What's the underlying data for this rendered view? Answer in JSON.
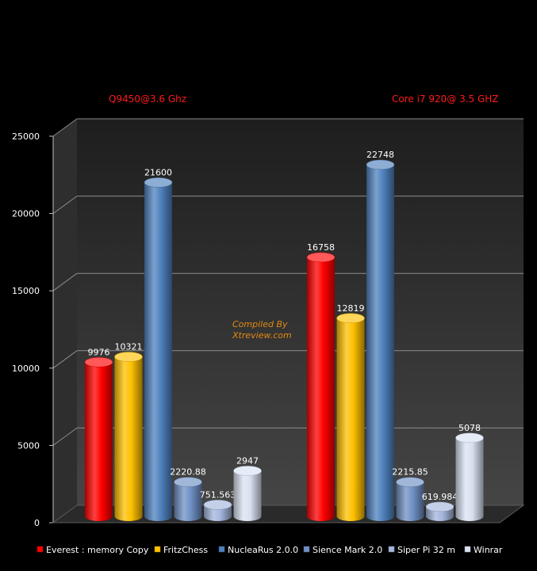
{
  "chart_data": {
    "type": "bar",
    "categories": [
      "Q9450@3.6 Ghz",
      "Core i7 920@ 3.5 GHZ"
    ],
    "series": [
      {
        "name": "Everest : memory Copy",
        "values": [
          9976,
          16758
        ],
        "labels": [
          "9976",
          "16758"
        ],
        "color": "#ff0000"
      },
      {
        "name": "FritzChess",
        "values": [
          10321,
          12819
        ],
        "labels": [
          "10321",
          "12819"
        ],
        "color": "#ffc000"
      },
      {
        "name": "NucleaRus 2.0.0",
        "values": [
          21600,
          22748
        ],
        "labels": [
          "21600",
          "22748"
        ],
        "color": "#4f81bd"
      },
      {
        "name": "Sience Mark 2.0",
        "values": [
          2220.88,
          2215.85
        ],
        "labels": [
          "2220.88",
          "2215.85"
        ],
        "color": "#6f90c4"
      },
      {
        "name": "Siper Pi 32 m",
        "values": [
          751.563,
          619.984
        ],
        "labels": [
          "751.563",
          "619.984"
        ],
        "color": "#a3b6dc"
      },
      {
        "name": "Winrar",
        "values": [
          2947,
          5078
        ],
        "labels": [
          "2947",
          "5078"
        ],
        "color": "#d9e1f2"
      }
    ],
    "ylim": [
      0,
      25000
    ],
    "yticks": [
      "0",
      "5000",
      "10000",
      "15000",
      "20000",
      "25000"
    ],
    "grid": true,
    "legend": "bottom",
    "watermark": [
      "Compiled By",
      "Xtreview.com"
    ]
  }
}
